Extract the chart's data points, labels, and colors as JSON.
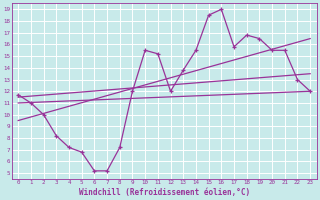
{
  "xlabel": "Windchill (Refroidissement éolien,°C)",
  "bg_color": "#c8eaea",
  "grid_color": "#b8d8d8",
  "line_color": "#993399",
  "xlim": [
    -0.5,
    23.5
  ],
  "ylim": [
    4.5,
    19.5
  ],
  "xticks": [
    0,
    1,
    2,
    3,
    4,
    5,
    6,
    7,
    8,
    9,
    10,
    11,
    12,
    13,
    14,
    15,
    16,
    17,
    18,
    19,
    20,
    21,
    22,
    23
  ],
  "yticks": [
    5,
    6,
    7,
    8,
    9,
    10,
    11,
    12,
    13,
    14,
    15,
    16,
    17,
    18,
    19
  ],
  "series1_x": [
    0,
    1,
    2,
    3,
    4,
    5,
    6,
    7,
    8,
    9,
    10,
    11,
    12,
    13,
    14,
    15,
    16,
    17,
    18,
    19,
    20,
    21,
    22,
    23
  ],
  "series1_y": [
    11.7,
    11.0,
    10.0,
    8.2,
    7.2,
    6.8,
    5.2,
    5.2,
    7.2,
    12.0,
    15.5,
    15.2,
    12.0,
    13.8,
    15.5,
    18.5,
    19.0,
    15.8,
    16.8,
    16.5,
    15.5,
    15.5,
    13.0,
    12.0
  ],
  "trend1_x": [
    0,
    23
  ],
  "trend1_y": [
    11.5,
    13.5
  ],
  "trend2_x": [
    0,
    23
  ],
  "trend2_y": [
    11.0,
    12.0
  ],
  "trend3_x": [
    0,
    23
  ],
  "trend3_y": [
    9.5,
    16.5
  ]
}
